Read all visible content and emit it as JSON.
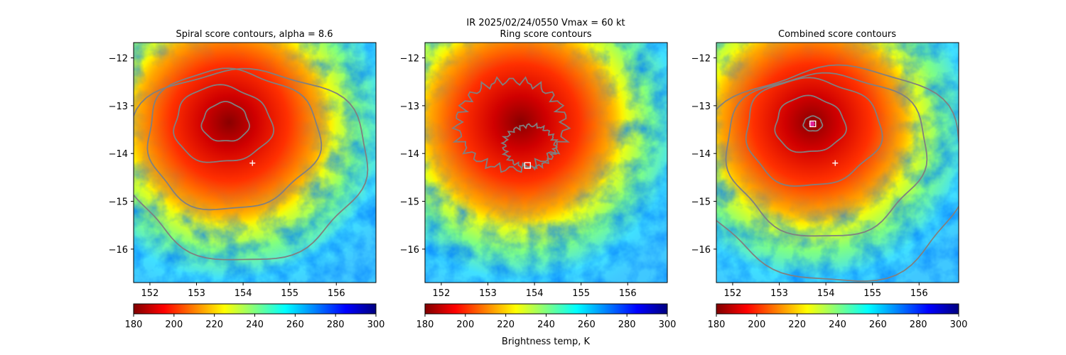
{
  "figure": {
    "suptitle_line1": "IR  2025/02/24/0550    Vmax = 60 kt",
    "colorbar_label": "Brightness temp, K",
    "colormap": "jet",
    "colormap_stops": [
      "#800000",
      "#ff0000",
      "#ff8000",
      "#ffff00",
      "#80ff80",
      "#00ffff",
      "#0080ff",
      "#0000ff",
      "#000080"
    ],
    "contour_color": "#808080",
    "storm_center": {
      "lon": 153.7,
      "lat": -13.35
    },
    "first_guess_marker_color": "#ffffff",
    "best_center_marker_color": "#e0209a"
  },
  "chart_data": [
    {
      "type": "heatmap",
      "title": "Spiral score contours, alpha =  8.6",
      "xlim": [
        151.65,
        156.85
      ],
      "ylim": [
        -16.7,
        -11.68
      ],
      "xticks": [
        "152",
        "153",
        "154",
        "155",
        "156"
      ],
      "yticks": [
        "−12",
        "−13",
        "−14",
        "−15",
        "−16"
      ],
      "xtick_values": [
        152,
        153,
        154,
        155,
        156
      ],
      "ytick_values": [
        -12,
        -13,
        -14,
        -15,
        -16
      ],
      "colorbar": {
        "min": 180,
        "max": 300,
        "ticks": [
          "180",
          "200",
          "220",
          "240",
          "260",
          "280",
          "300"
        ],
        "tick_values": [
          180,
          200,
          220,
          240,
          260,
          280,
          300
        ]
      },
      "contour_levels": [
        {
          "center": [
            153.62,
            -13.35
          ],
          "rx": 0.5,
          "ry": 0.42
        },
        {
          "center": [
            153.55,
            -13.4
          ],
          "rx": 1.05,
          "ry": 0.82
        },
        {
          "center": [
            153.75,
            -13.7
          ],
          "rx": 1.85,
          "ry": 1.5
        },
        {
          "center": [
            154.05,
            -14.2
          ],
          "rx": 2.6,
          "ry": 2.05
        }
      ],
      "markers": [
        {
          "kind": "plus",
          "lon": 154.2,
          "lat": -14.2
        }
      ]
    },
    {
      "type": "heatmap",
      "title": "Ring score contours",
      "xlim": [
        151.65,
        156.85
      ],
      "ylim": [
        -16.7,
        -11.68
      ],
      "xticks": [
        "152",
        "153",
        "154",
        "155",
        "156"
      ],
      "yticks": [
        "−12",
        "−13",
        "−14",
        "−15",
        "−16"
      ],
      "xtick_values": [
        152,
        153,
        154,
        155,
        156
      ],
      "ytick_values": [
        -12,
        -13,
        -14,
        -15,
        -16
      ],
      "colorbar": {
        "min": 180,
        "max": 300,
        "ticks": [
          "180",
          "200",
          "220",
          "240",
          "260",
          "280",
          "300"
        ],
        "tick_values": [
          180,
          200,
          220,
          240,
          260,
          280,
          300
        ]
      },
      "contour_levels": [
        {
          "center": [
            153.5,
            -13.4
          ],
          "rx": 1.15,
          "ry": 0.95
        },
        {
          "center": [
            153.9,
            -13.85
          ],
          "rx": 0.55,
          "ry": 0.45
        }
      ],
      "markers": [
        {
          "kind": "square",
          "lon": 153.85,
          "lat": -14.25
        }
      ]
    },
    {
      "type": "heatmap",
      "title": "Combined score contours",
      "xlim": [
        151.65,
        156.85
      ],
      "ylim": [
        -16.7,
        -11.68
      ],
      "xticks": [
        "152",
        "153",
        "154",
        "155",
        "156"
      ],
      "yticks": [
        "−12",
        "−13",
        "−14",
        "−15",
        "−16"
      ],
      "xtick_values": [
        152,
        153,
        154,
        155,
        156
      ],
      "ytick_values": [
        -12,
        -13,
        -14,
        -15,
        -16
      ],
      "colorbar": {
        "min": 180,
        "max": 300,
        "ticks": [
          "180",
          "200",
          "220",
          "240",
          "260",
          "280",
          "300"
        ],
        "tick_values": [
          180,
          200,
          220,
          240,
          260,
          280,
          300
        ]
      },
      "contour_levels": [
        {
          "center": [
            153.72,
            -13.38
          ],
          "rx": 0.2,
          "ry": 0.16
        },
        {
          "center": [
            153.65,
            -13.4
          ],
          "rx": 0.75,
          "ry": 0.6
        },
        {
          "center": [
            153.7,
            -13.55
          ],
          "rx": 1.45,
          "ry": 1.15
        },
        {
          "center": [
            154.0,
            -14.0
          ],
          "rx": 2.15,
          "ry": 1.75
        },
        {
          "center": [
            154.15,
            -14.4
          ],
          "rx": 2.9,
          "ry": 2.3
        }
      ],
      "markers": [
        {
          "kind": "plus",
          "lon": 154.2,
          "lat": -14.2
        },
        {
          "kind": "dot",
          "lon": 153.7,
          "lat": -13.38
        },
        {
          "kind": "square",
          "lon": 153.72,
          "lat": -13.38
        }
      ]
    }
  ]
}
